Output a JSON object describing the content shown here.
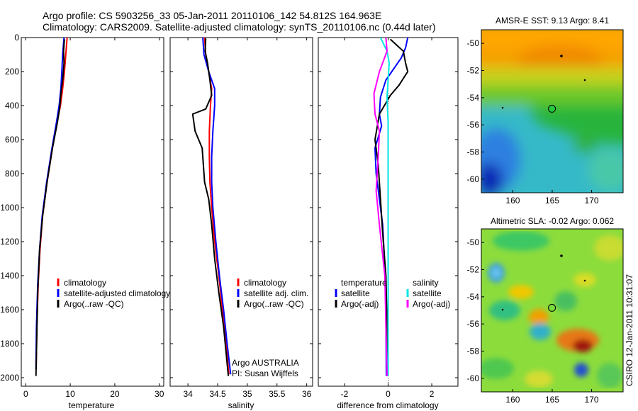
{
  "header": {
    "line1": "Argo profile: CS 5903256_33 05-Jan-2011 20110106_142 54.812S 164.963E",
    "line2": "Climatology: CARS2009. Satellite-adjusted climatology: synTS_20110106.nc (0.44d later)"
  },
  "footer": {
    "credit": "Argo AUSTRALIA",
    "pi": "PI: Susan Wijffels",
    "stamp": "CSIRO 12-Jan-2011 10:31:07"
  },
  "chart_data": [
    {
      "id": "temperature",
      "type": "line",
      "title": "",
      "xlabel": "temperature",
      "ylabel": "",
      "xlim": [
        -1,
        31
      ],
      "ylim": [
        2050,
        0
      ],
      "xticks": [
        0,
        10,
        20,
        30
      ],
      "yticks": [
        0,
        200,
        400,
        600,
        800,
        1000,
        1200,
        1400,
        1600,
        1800,
        2000
      ],
      "legend": [
        "climatology",
        "satellite-adjusted climatology",
        "Argo(..raw -QC)"
      ],
      "series": [
        {
          "name": "climatology",
          "color": "#ff0000",
          "x": [
            9.3,
            9.0,
            8.7,
            8.3,
            7.8,
            7.0,
            6.0,
            4.8,
            3.8,
            3.2,
            2.8,
            2.5,
            2.35
          ],
          "y": [
            0,
            100,
            200,
            300,
            400,
            500,
            650,
            850,
            1050,
            1250,
            1450,
            1700,
            1950
          ]
        },
        {
          "name": "satellite-adjusted climatology",
          "color": "#0000ff",
          "x": [
            8.6,
            8.3,
            8.1,
            7.9,
            7.5,
            6.9,
            5.9,
            4.7,
            3.7,
            3.1,
            2.7,
            2.4,
            2.3
          ],
          "y": [
            0,
            100,
            200,
            300,
            400,
            500,
            650,
            850,
            1050,
            1250,
            1450,
            1700,
            1950
          ]
        },
        {
          "name": "Argo(..raw -QC)",
          "color": "#000000",
          "x": [
            8.7,
            8.5,
            8.6,
            8.3,
            7.9,
            7.6,
            7.1,
            6.0,
            4.8,
            3.8,
            3.1,
            2.7,
            2.3
          ],
          "y": [
            10,
            80,
            150,
            250,
            330,
            420,
            500,
            650,
            850,
            1050,
            1250,
            1500,
            1990
          ]
        }
      ]
    },
    {
      "id": "salinity",
      "type": "line",
      "title": "",
      "xlabel": "salinity",
      "ylabel": "",
      "xlim": [
        33.7,
        36.1
      ],
      "ylim": [
        2050,
        0
      ],
      "xticks": [
        34,
        34.5,
        35,
        35.5,
        36
      ],
      "yticks": [
        0,
        200,
        400,
        600,
        800,
        1000,
        1200,
        1400,
        1600,
        1800,
        2000
      ],
      "legend": [
        "climatology",
        "satellite adj. clim.",
        "Argo(..raw -QC)"
      ],
      "series": [
        {
          "name": "climatology",
          "color": "#ff0000",
          "x": [
            34.28,
            34.3,
            34.35,
            34.4,
            34.38,
            34.36,
            34.36,
            34.37,
            34.4,
            34.45,
            34.52,
            34.58,
            34.64,
            34.69
          ],
          "y": [
            0,
            100,
            200,
            300,
            400,
            550,
            700,
            850,
            1000,
            1200,
            1400,
            1600,
            1800,
            1980
          ]
        },
        {
          "name": "satellite adj. clim.",
          "color": "#0000ff",
          "x": [
            34.25,
            34.27,
            34.35,
            34.45,
            34.45,
            34.42,
            34.4,
            34.4,
            34.42,
            34.47,
            34.53,
            34.6,
            34.66,
            34.72
          ],
          "y": [
            0,
            100,
            200,
            300,
            400,
            550,
            700,
            850,
            1000,
            1200,
            1400,
            1600,
            1800,
            1980
          ]
        },
        {
          "name": "Argo(..raw -QC)",
          "color": "#000000",
          "x": [
            34.3,
            34.29,
            34.33,
            34.37,
            34.4,
            34.3,
            34.08,
            34.12,
            34.24,
            34.26,
            34.28,
            34.35,
            34.4,
            34.45,
            34.52,
            34.6,
            34.68
          ],
          "y": [
            5,
            80,
            150,
            250,
            340,
            420,
            450,
            550,
            650,
            750,
            850,
            950,
            1100,
            1300,
            1500,
            1700,
            1990
          ]
        }
      ]
    },
    {
      "id": "difference",
      "type": "line",
      "title": "",
      "xlabel": "difference from climatology",
      "ylabel": "",
      "xlim": [
        -3.2,
        3.2
      ],
      "ylim": [
        2050,
        0
      ],
      "xticks": [
        -2,
        0,
        2
      ],
      "yticks": [
        0,
        200,
        400,
        600,
        800,
        1000,
        1200,
        1400,
        1600,
        1800,
        2000
      ],
      "legend_groups": [
        {
          "title": "temperature",
          "items": [
            "satellite",
            "Argo(-adj)"
          ]
        },
        {
          "title": "salinity",
          "items": [
            "satellite",
            "Argo(-adj)"
          ]
        }
      ],
      "series": [
        {
          "name": "temperature satellite",
          "color": "#0000ff",
          "x": [
            0.9,
            0.8,
            0.6,
            -0.1,
            -0.35,
            -0.4,
            -0.3,
            -0.6,
            -0.55,
            -0.4,
            -0.25,
            -0.15,
            -0.1,
            -0.08
          ],
          "y": [
            0,
            60,
            120,
            250,
            350,
            450,
            520,
            650,
            800,
            950,
            1100,
            1350,
            1650,
            1990
          ]
        },
        {
          "name": "temperature Argo(-adj)",
          "color": "#000000",
          "x": [
            0.1,
            0.7,
            0.8,
            0.9,
            0.5,
            0.1,
            -0.4,
            -0.6,
            -0.45,
            -0.35,
            -0.25,
            -0.1,
            -0.05,
            0.0
          ],
          "y": [
            10,
            80,
            150,
            200,
            280,
            340,
            450,
            600,
            750,
            950,
            1150,
            1400,
            1700,
            1990
          ]
        },
        {
          "name": "salinity satellite",
          "color": "#00e5e5",
          "x": [
            -0.35,
            -0.05,
            0.05,
            0.0,
            -0.05,
            0.0,
            0.0,
            0.0,
            0.0,
            0.0,
            0.0,
            0.0
          ],
          "y": [
            0,
            80,
            150,
            250,
            350,
            500,
            700,
            900,
            1100,
            1400,
            1700,
            1990
          ]
        },
        {
          "name": "salinity Argo(-adj)",
          "color": "#ff00ff",
          "x": [
            -0.1,
            -0.05,
            -0.4,
            -0.65,
            -0.6,
            -0.4,
            -0.45,
            -0.55,
            -0.4,
            -0.15,
            -0.1,
            -0.05
          ],
          "y": [
            0,
            80,
            200,
            330,
            450,
            550,
            700,
            900,
            1100,
            1400,
            1700,
            1990
          ]
        }
      ],
      "reference_line": 0
    },
    {
      "id": "sst-map",
      "type": "heatmap",
      "title": "AMSR-E SST: 9.13 Argo: 8.41",
      "xlim": [
        156,
        174
      ],
      "ylim": [
        -61,
        -49
      ],
      "xticks": [
        160,
        165,
        170
      ],
      "yticks": [
        -50,
        -52,
        -54,
        -56,
        -58,
        -60
      ],
      "marker": {
        "lon": 164.963,
        "lat": -54.812
      }
    },
    {
      "id": "sla-map",
      "type": "heatmap",
      "title": "Altimetric SLA: -0.02 Argo: 0.062",
      "xlim": [
        156,
        174
      ],
      "ylim": [
        -61,
        -49
      ],
      "xticks": [
        160,
        165,
        170
      ],
      "yticks": [
        -50,
        -52,
        -54,
        -56,
        -58,
        -60
      ],
      "marker": {
        "lon": 164.963,
        "lat": -54.812
      }
    }
  ]
}
